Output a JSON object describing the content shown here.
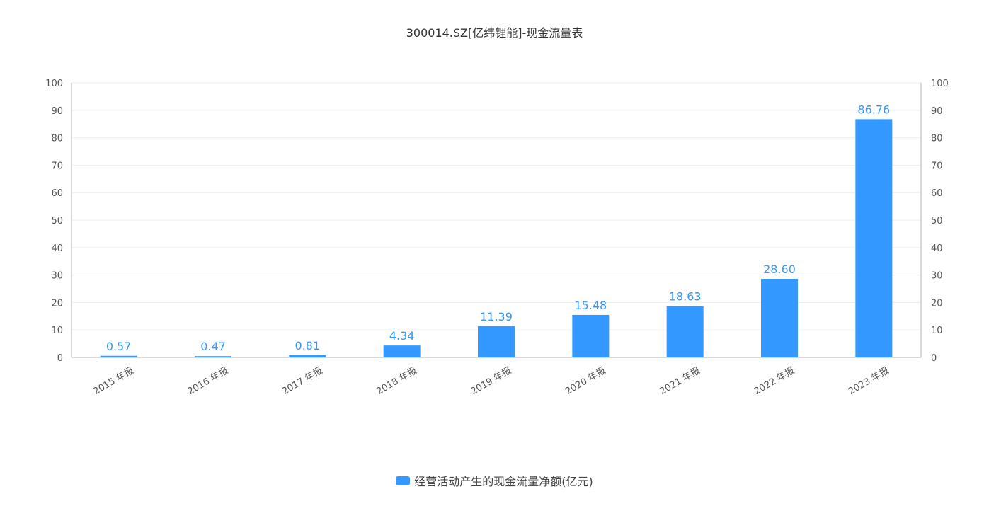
{
  "title": "300014.SZ[亿纬锂能]-现金流量表",
  "colors": {
    "bar": "#3398ff",
    "label": "#3398ff",
    "axis": "#cccccc",
    "grid": "#eeeeee",
    "tick_text": "#555555"
  },
  "legend": {
    "label": "经营活动产生的现金流量净额(亿元)"
  },
  "chart_data": {
    "type": "bar",
    "title": "300014.SZ[亿纬锂能]-现金流量表",
    "categories": [
      "2015 年报",
      "2016 年报",
      "2017 年报",
      "2018 年报",
      "2019 年报",
      "2020 年报",
      "2021 年报",
      "2022 年报",
      "2023 年报"
    ],
    "series": [
      {
        "name": "经营活动产生的现金流量净额(亿元)",
        "values": [
          0.57,
          0.47,
          0.81,
          4.34,
          11.39,
          15.48,
          18.63,
          28.6,
          86.76
        ],
        "labels": [
          "0.57",
          "0.47",
          "0.81",
          "4.34",
          "11.39",
          "15.48",
          "18.63",
          "28.60",
          "86.76"
        ]
      }
    ],
    "ylim": [
      0,
      100
    ],
    "yticks": [
      "0",
      "10",
      "20",
      "30",
      "40",
      "50",
      "60",
      "70",
      "80",
      "90",
      "100"
    ],
    "right_axis": true,
    "grid": true,
    "legend_position": "bottom"
  }
}
